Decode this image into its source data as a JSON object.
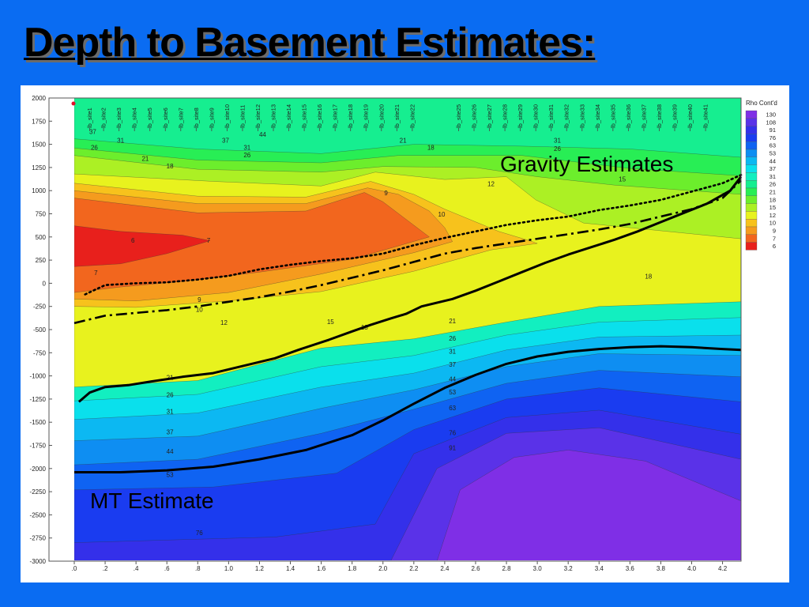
{
  "slide": {
    "title": "Depth to Basement Estimates:"
  },
  "colors": {
    "background": "#0a6cf2",
    "gravity_line": "#000000",
    "mt_line": "#000000"
  },
  "annotations": {
    "gravity": "Gravity Estimates",
    "mt": "MT Estimate"
  },
  "chart_data": {
    "type": "heatmap",
    "title": "",
    "xlabel": "",
    "ylabel": "",
    "xlim": [
      0.0,
      4.32
    ],
    "ylim": [
      -3000,
      2000
    ],
    "x_ticks": [
      0.0,
      0.2,
      0.4,
      0.6,
      0.8,
      1.0,
      1.2,
      1.4,
      1.6,
      1.8,
      2.0,
      2.2,
      2.4,
      2.6,
      2.8,
      3.0,
      3.2,
      3.4,
      3.6,
      3.8,
      4.0,
      4.2
    ],
    "x_tick_labels": [
      ".0",
      ".2",
      ".4",
      ".6",
      ".8",
      "1.0",
      "1.2",
      "1.4",
      "1.6",
      "1.8",
      "2.0",
      "2.2",
      "2.4",
      "2.6",
      "2.8",
      "3.0",
      "3.2",
      "3.4",
      "3.6",
      "3.8",
      "4.0",
      "4.2"
    ],
    "y_ticks": [
      2000,
      1750,
      1500,
      1250,
      1000,
      750,
      500,
      250,
      0,
      -250,
      -500,
      -750,
      -1000,
      -1250,
      -1500,
      -1750,
      -2000,
      -2250,
      -2500,
      -2750,
      -3000
    ],
    "y_tick_labels": [
      "2000",
      "1750",
      "1500",
      "1250",
      "1000",
      "750",
      "500",
      "250",
      "0",
      "-250",
      "-500",
      "-750",
      "-1000",
      "-1250",
      "-1500",
      "-1750",
      "-2000",
      "-2250",
      "-2500",
      "-2750",
      "-3000"
    ],
    "stations": [
      {
        "name": "lb_site1",
        "x": 0.1
      },
      {
        "name": "lb_site2",
        "x": 0.19
      },
      {
        "name": "lb_site3",
        "x": 0.29
      },
      {
        "name": "lb_site4",
        "x": 0.39
      },
      {
        "name": "lb_site5",
        "x": 0.49
      },
      {
        "name": "lb_site6",
        "x": 0.59
      },
      {
        "name": "lb_site7",
        "x": 0.69
      },
      {
        "name": "lb_site8",
        "x": 0.79
      },
      {
        "name": "lb_site9",
        "x": 0.89
      },
      {
        "name": "lb_site10",
        "x": 0.99
      },
      {
        "name": "lb_site11",
        "x": 1.09
      },
      {
        "name": "lb_site12",
        "x": 1.19
      },
      {
        "name": "lb_site13",
        "x": 1.29
      },
      {
        "name": "lb_site14",
        "x": 1.39
      },
      {
        "name": "lb_site15",
        "x": 1.49
      },
      {
        "name": "lb_site16",
        "x": 1.59
      },
      {
        "name": "lb_site17",
        "x": 1.69
      },
      {
        "name": "lb_site18",
        "x": 1.79
      },
      {
        "name": "lb_site19",
        "x": 1.89
      },
      {
        "name": "lb_site20",
        "x": 1.99
      },
      {
        "name": "lb_site21",
        "x": 2.09
      },
      {
        "name": "lb_site22",
        "x": 2.19
      },
      {
        "name": "lb_site25",
        "x": 2.49
      },
      {
        "name": "lb_site26",
        "x": 2.59
      },
      {
        "name": "lb_site27",
        "x": 2.69
      },
      {
        "name": "lb_site28",
        "x": 2.79
      },
      {
        "name": "lb_site29",
        "x": 2.89
      },
      {
        "name": "lb_site30",
        "x": 2.99
      },
      {
        "name": "lb_site31",
        "x": 3.09
      },
      {
        "name": "lb_site32",
        "x": 3.19
      },
      {
        "name": "lb_site33",
        "x": 3.29
      },
      {
        "name": "lb_site34",
        "x": 3.39
      },
      {
        "name": "lb_site35",
        "x": 3.49
      },
      {
        "name": "lb_site36",
        "x": 3.59
      },
      {
        "name": "lb_site37",
        "x": 3.69
      },
      {
        "name": "lb_site38",
        "x": 3.79
      },
      {
        "name": "lb_site39",
        "x": 3.89
      },
      {
        "name": "lb_site40",
        "x": 3.99
      },
      {
        "name": "lb_site41",
        "x": 4.09
      }
    ],
    "legend": {
      "title": "Rho Cont'd",
      "placement": "right",
      "levels": [
        {
          "label": "130",
          "color": "#7f2fe6"
        },
        {
          "label": "108",
          "color": "#5a32e8"
        },
        {
          "label": "91",
          "color": "#3430ea"
        },
        {
          "label": "76",
          "color": "#1a3cf0"
        },
        {
          "label": "63",
          "color": "#0f63f2"
        },
        {
          "label": "53",
          "color": "#0e8ef2"
        },
        {
          "label": "44",
          "color": "#0cb8f2"
        },
        {
          "label": "37",
          "color": "#0ae0ec"
        },
        {
          "label": "31",
          "color": "#12efc0"
        },
        {
          "label": "26",
          "color": "#16ee90"
        },
        {
          "label": "21",
          "color": "#28ee55"
        },
        {
          "label": "18",
          "color": "#6cee2c"
        },
        {
          "label": "15",
          "color": "#acf024"
        },
        {
          "label": "12",
          "color": "#e8f21e"
        },
        {
          "label": "10",
          "color": "#f7c21c"
        },
        {
          "label": "9",
          "color": "#f59b1e"
        },
        {
          "label": "7",
          "color": "#f2661e"
        },
        {
          "label": "6",
          "color": "#e8201c"
        }
      ]
    },
    "contour_labels": [
      {
        "text": "37",
        "x": 0.12,
        "y": 1610
      },
      {
        "text": "31",
        "x": 0.3,
        "y": 1520
      },
      {
        "text": "26",
        "x": 0.13,
        "y": 1440
      },
      {
        "text": "21",
        "x": 0.46,
        "y": 1320
      },
      {
        "text": "18",
        "x": 0.62,
        "y": 1240
      },
      {
        "text": "44",
        "x": 1.22,
        "y": 1580
      },
      {
        "text": "37",
        "x": 0.98,
        "y": 1520
      },
      {
        "text": "31",
        "x": 1.12,
        "y": 1440
      },
      {
        "text": "26",
        "x": 1.12,
        "y": 1360
      },
      {
        "text": "21",
        "x": 2.13,
        "y": 1520
      },
      {
        "text": "18",
        "x": 2.31,
        "y": 1440
      },
      {
        "text": "31",
        "x": 3.13,
        "y": 1520
      },
      {
        "text": "26",
        "x": 3.13,
        "y": 1430
      },
      {
        "text": "15",
        "x": 3.55,
        "y": 1100
      },
      {
        "text": "12",
        "x": 2.7,
        "y": 1050
      },
      {
        "text": "9",
        "x": 2.02,
        "y": 950
      },
      {
        "text": "10",
        "x": 2.38,
        "y": 720
      },
      {
        "text": "6",
        "x": 0.38,
        "y": 440
      },
      {
        "text": "7",
        "x": 0.87,
        "y": 440
      },
      {
        "text": "7",
        "x": 0.14,
        "y": 90
      },
      {
        "text": "18",
        "x": 3.72,
        "y": 50
      },
      {
        "text": "9",
        "x": 0.81,
        "y": -200
      },
      {
        "text": "10",
        "x": 0.81,
        "y": -310
      },
      {
        "text": "12",
        "x": 0.97,
        "y": -450
      },
      {
        "text": "15",
        "x": 1.66,
        "y": -440
      },
      {
        "text": "18",
        "x": 1.88,
        "y": -500
      },
      {
        "text": "21",
        "x": 2.45,
        "y": -430
      },
      {
        "text": "26",
        "x": 2.45,
        "y": -620
      },
      {
        "text": "31",
        "x": 2.45,
        "y": -760
      },
      {
        "text": "37",
        "x": 2.45,
        "y": -900
      },
      {
        "text": "44",
        "x": 2.45,
        "y": -1060
      },
      {
        "text": "53",
        "x": 2.45,
        "y": -1200
      },
      {
        "text": "63",
        "x": 2.45,
        "y": -1370
      },
      {
        "text": "21",
        "x": 0.62,
        "y": -1040
      },
      {
        "text": "26",
        "x": 0.62,
        "y": -1230
      },
      {
        "text": "31",
        "x": 0.62,
        "y": -1410
      },
      {
        "text": "37",
        "x": 0.62,
        "y": -1630
      },
      {
        "text": "44",
        "x": 0.62,
        "y": -1840
      },
      {
        "text": "53",
        "x": 0.62,
        "y": -2090
      },
      {
        "text": "76",
        "x": 2.45,
        "y": -1640
      },
      {
        "text": "91",
        "x": 2.45,
        "y": -1800
      },
      {
        "text": "76",
        "x": 0.81,
        "y": -2720
      }
    ],
    "series": [
      {
        "name": "Gravity Estimates",
        "style": "solid",
        "x": [
          0.03,
          0.1,
          0.2,
          0.35,
          0.5,
          0.7,
          0.9,
          1.1,
          1.3,
          1.45,
          1.65,
          1.8,
          1.92,
          2.05,
          2.15,
          2.25,
          2.45,
          2.6,
          2.75,
          2.9,
          3.05,
          3.2,
          3.35,
          3.5,
          3.65,
          3.8,
          3.95,
          4.1,
          4.25,
          4.32
        ],
        "y": [
          -1280,
          -1180,
          -1120,
          -1100,
          -1060,
          -1010,
          -970,
          -890,
          -810,
          -720,
          -610,
          -520,
          -450,
          -380,
          -330,
          -250,
          -170,
          -80,
          20,
          120,
          220,
          310,
          390,
          470,
          560,
          660,
          760,
          860,
          1000,
          1150
        ]
      },
      {
        "name": "Gravity Estimates (dash-dot)",
        "style": "dashdot",
        "x": [
          0.0,
          0.2,
          0.4,
          0.6,
          0.8,
          1.0,
          1.2,
          1.4,
          1.6,
          1.8,
          2.0,
          2.2,
          2.4,
          2.6,
          2.8,
          3.0,
          3.2,
          3.4,
          3.6,
          3.8,
          4.0,
          4.2,
          4.32
        ],
        "y": [
          -430,
          -350,
          -320,
          -290,
          -250,
          -200,
          -150,
          -90,
          -20,
          60,
          140,
          230,
          320,
          380,
          430,
          480,
          530,
          580,
          640,
          720,
          800,
          920,
          1110
        ]
      },
      {
        "name": "Gravity Estimates (dotted)",
        "style": "dotted",
        "x": [
          0.07,
          0.2,
          0.4,
          0.6,
          0.8,
          1.0,
          1.2,
          1.4,
          1.6,
          1.8,
          2.0,
          2.2,
          2.4,
          2.6,
          2.8,
          3.0,
          3.2,
          3.4,
          3.6,
          3.8,
          4.0,
          4.2,
          4.32
        ],
        "y": [
          -120,
          -20,
          0,
          10,
          40,
          80,
          150,
          200,
          240,
          270,
          320,
          410,
          490,
          560,
          630,
          680,
          720,
          790,
          840,
          900,
          990,
          1080,
          1170
        ]
      },
      {
        "name": "MT Estimate",
        "style": "solid",
        "x": [
          0.0,
          0.3,
          0.6,
          0.9,
          1.2,
          1.5,
          1.8,
          2.0,
          2.2,
          2.4,
          2.6,
          2.8,
          3.0,
          3.2,
          3.4,
          3.6,
          3.8,
          4.0,
          4.2,
          4.32
        ],
        "y": [
          -2040,
          -2040,
          -2020,
          -1980,
          -1900,
          -1800,
          -1640,
          -1480,
          -1300,
          -1130,
          -990,
          -870,
          -790,
          -740,
          -710,
          -690,
          -680,
          -690,
          -710,
          -720
        ]
      }
    ]
  }
}
